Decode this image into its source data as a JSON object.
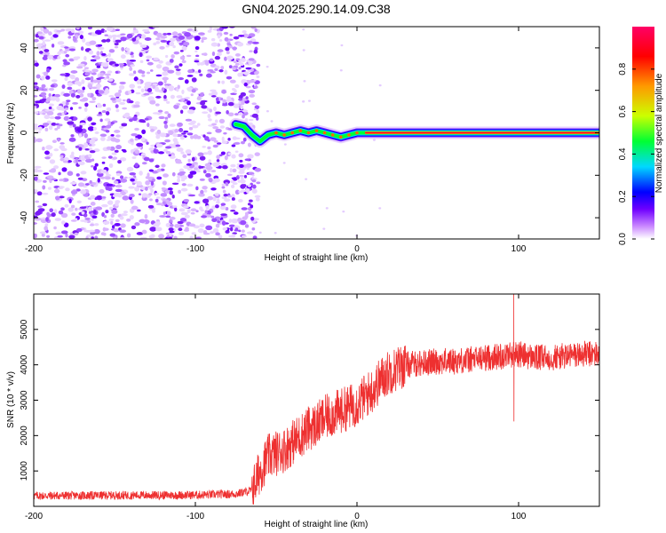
{
  "title": "GN04.2025.290.14.09.C38",
  "colors": {
    "snr_line": "#ee3030",
    "background": "#ffffff",
    "colormap": [
      "#ffffff",
      "#ca88ff",
      "#6f00ff",
      "#0000ff",
      "#00d8ff",
      "#00ff33",
      "#ccff00",
      "#ff9900",
      "#ff0000",
      "#ff0066"
    ]
  },
  "chart_data": [
    {
      "type": "heatmap",
      "name": "spectrogram",
      "xlabel": "Height of straight line (km)",
      "ylabel": "Frequency (Hz)",
      "xlim": [
        -200,
        150
      ],
      "ylim": [
        -50,
        50
      ],
      "x_ticks": [
        -200,
        -100,
        0,
        100
      ],
      "x_tick_labels": [
        "-200",
        "-100",
        "0",
        "100"
      ],
      "y_ticks": [
        -40,
        -20,
        0,
        20,
        40
      ],
      "y_tick_labels": [
        "-40",
        "-20",
        "0",
        "20",
        "40"
      ],
      "noise_region_x": [
        -200,
        -65
      ],
      "signal_track": [
        {
          "x": -75,
          "y": 4
        },
        {
          "x": -70,
          "y": 3
        },
        {
          "x": -65,
          "y": -1
        },
        {
          "x": -60,
          "y": -4
        },
        {
          "x": -55,
          "y": -1
        },
        {
          "x": -50,
          "y": 0
        },
        {
          "x": -45,
          "y": -1
        },
        {
          "x": -40,
          "y": 0
        },
        {
          "x": -35,
          "y": 1
        },
        {
          "x": -30,
          "y": 0
        },
        {
          "x": -25,
          "y": 1
        },
        {
          "x": -20,
          "y": 0
        },
        {
          "x": -15,
          "y": -1
        },
        {
          "x": -10,
          "y": -2
        },
        {
          "x": -5,
          "y": -1
        },
        {
          "x": 0,
          "y": 0
        },
        {
          "x": 5,
          "y": 0
        },
        {
          "x": 150,
          "y": 0
        }
      ],
      "colorbar": {
        "label": "Normalized spectral amplitude",
        "range": [
          0,
          1
        ],
        "ticks": [
          0.0,
          0.2,
          0.4,
          0.6,
          0.8
        ],
        "tick_labels": [
          "0.0",
          "0.2",
          "0.4",
          "0.6",
          "0.8"
        ]
      }
    },
    {
      "type": "line",
      "name": "snr",
      "xlabel": "Height of straight line (km)",
      "ylabel": "SNR (10 * v/v)",
      "xlim": [
        -200,
        150
      ],
      "ylim": [
        0,
        6000
      ],
      "x_ticks": [
        -200,
        -100,
        0,
        100
      ],
      "x_tick_labels": [
        "-200",
        "-100",
        "0",
        "100"
      ],
      "y_ticks": [
        1000,
        2000,
        3000,
        4000,
        5000
      ],
      "y_tick_labels": [
        "1000",
        "2000",
        "3000",
        "4000",
        "5000"
      ],
      "series": [
        {
          "name": "SNR",
          "x": [
            -200,
            -150,
            -100,
            -75,
            -65,
            -60,
            -55,
            -50,
            -45,
            -40,
            -35,
            -30,
            -25,
            -20,
            -15,
            -10,
            -5,
            0,
            5,
            10,
            15,
            20,
            25,
            30,
            40,
            50,
            60,
            70,
            80,
            90,
            95,
            97,
            100,
            110,
            120,
            130,
            140,
            150
          ],
          "y": [
            300,
            310,
            320,
            350,
            450,
            1000,
            1400,
            1500,
            1600,
            1800,
            2000,
            2200,
            2300,
            2500,
            2600,
            2700,
            2800,
            2900,
            3100,
            3300,
            3600,
            3800,
            3900,
            4000,
            4050,
            4100,
            4100,
            4150,
            4200,
            4250,
            4300,
            4300,
            4300,
            4200,
            4200,
            4250,
            4300,
            4300
          ]
        }
      ]
    }
  ]
}
